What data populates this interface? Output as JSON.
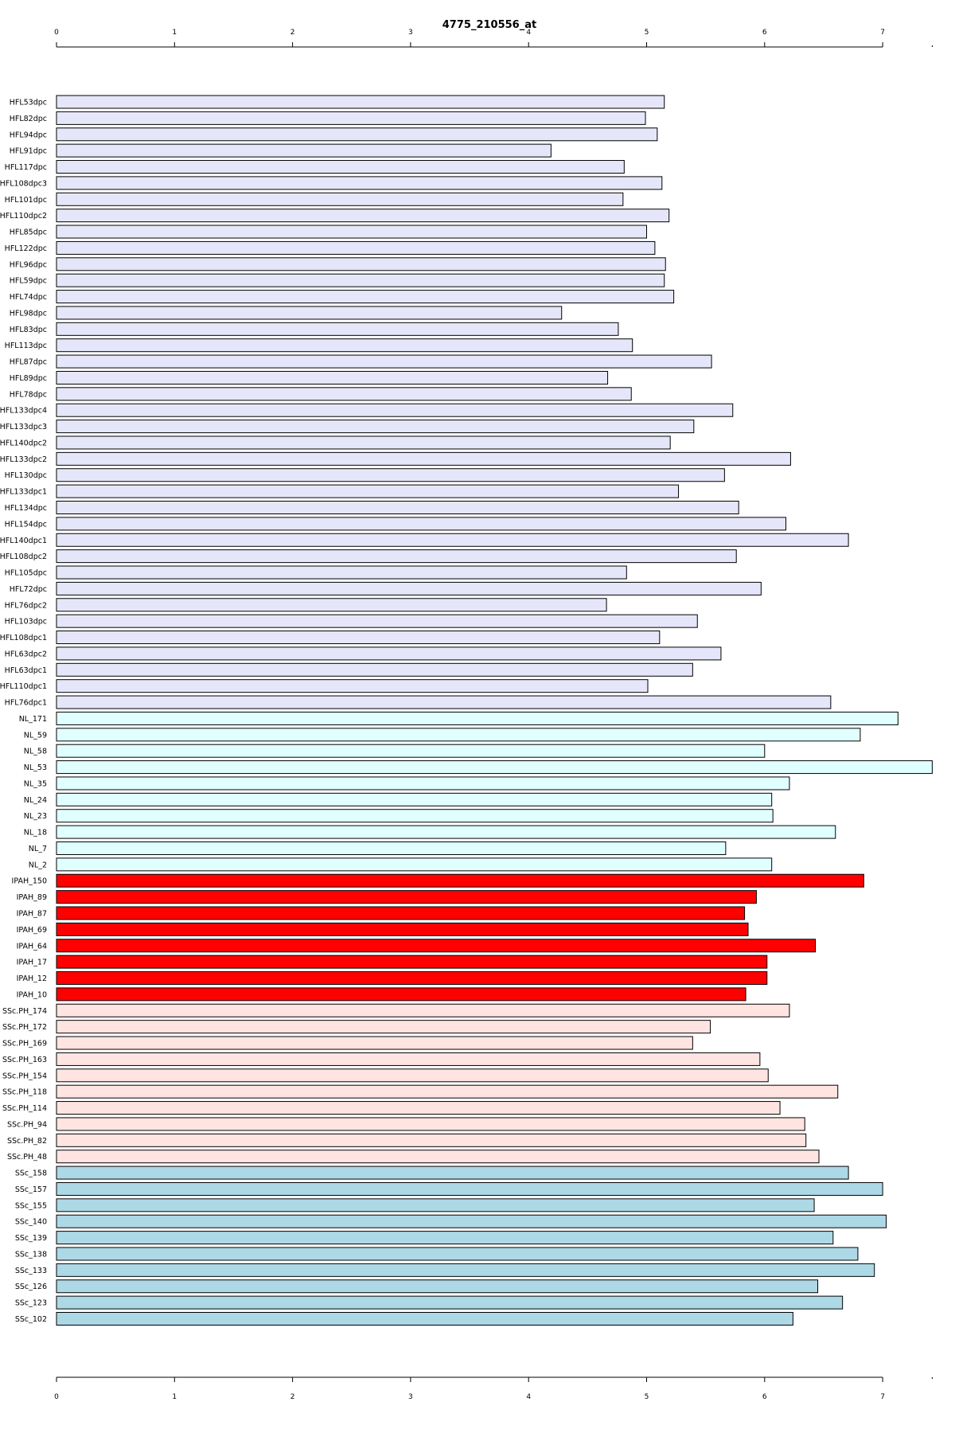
{
  "chart_data": {
    "type": "bar",
    "orientation": "horizontal",
    "title": "4775_210556_at",
    "xlabel": "",
    "ylabel": "",
    "xlim": [
      0,
      7.42
    ],
    "ticks": [
      0,
      1,
      2,
      3,
      4,
      5,
      6,
      7
    ],
    "grid": false,
    "legend": "none",
    "group_colors": {
      "HFL": "#e6e6fa",
      "NL": "#e0ffff",
      "IPAH": "#ff0000",
      "SSc.PH": "#ffe4e1",
      "SSc": "#add8e6"
    },
    "categories": [
      "HFL53dpc",
      "HFL82dpc",
      "HFL94dpc",
      "HFL91dpc",
      "HFL117dpc",
      "HFL108dpc3",
      "HFL101dpc",
      "HFL110dpc2",
      "HFL85dpc",
      "HFL122dpc",
      "HFL96dpc",
      "HFL59dpc",
      "HFL74dpc",
      "HFL98dpc",
      "HFL83dpc",
      "HFL113dpc",
      "HFL87dpc",
      "HFL89dpc",
      "HFL78dpc",
      "HFL133dpc4",
      "HFL133dpc3",
      "HFL140dpc2",
      "HFL133dpc2",
      "HFL130dpc",
      "HFL133dpc1",
      "HFL134dpc",
      "HFL154dpc",
      "HFL140dpc1",
      "HFL108dpc2",
      "HFL105dpc",
      "HFL72dpc",
      "HFL76dpc2",
      "HFL103dpc",
      "HFL108dpc1",
      "HFL63dpc2",
      "HFL63dpc1",
      "HFL110dpc1",
      "HFL76dpc1",
      "NL_171",
      "NL_59",
      "NL_58",
      "NL_53",
      "NL_35",
      "NL_24",
      "NL_23",
      "NL_18",
      "NL_7",
      "NL_2",
      "IPAH_150",
      "IPAH_89",
      "IPAH_87",
      "IPAH_69",
      "IPAH_64",
      "IPAH_17",
      "IPAH_12",
      "IPAH_10",
      "SSc.PH_174",
      "SSc.PH_172",
      "SSc.PH_169",
      "SSc.PH_163",
      "SSc.PH_154",
      "SSc.PH_118",
      "SSc.PH_114",
      "SSc.PH_94",
      "SSc.PH_82",
      "SSc.PH_48",
      "SSc_158",
      "SSc_157",
      "SSc_155",
      "SSc_140",
      "SSc_139",
      "SSc_138",
      "SSc_133",
      "SSc_126",
      "SSc_123",
      "SSc_102"
    ],
    "groups": [
      "HFL",
      "HFL",
      "HFL",
      "HFL",
      "HFL",
      "HFL",
      "HFL",
      "HFL",
      "HFL",
      "HFL",
      "HFL",
      "HFL",
      "HFL",
      "HFL",
      "HFL",
      "HFL",
      "HFL",
      "HFL",
      "HFL",
      "HFL",
      "HFL",
      "HFL",
      "HFL",
      "HFL",
      "HFL",
      "HFL",
      "HFL",
      "HFL",
      "HFL",
      "HFL",
      "HFL",
      "HFL",
      "HFL",
      "HFL",
      "HFL",
      "HFL",
      "HFL",
      "HFL",
      "NL",
      "NL",
      "NL",
      "NL",
      "NL",
      "NL",
      "NL",
      "NL",
      "NL",
      "NL",
      "IPAH",
      "IPAH",
      "IPAH",
      "IPAH",
      "IPAH",
      "IPAH",
      "IPAH",
      "IPAH",
      "SSc.PH",
      "SSc.PH",
      "SSc.PH",
      "SSc.PH",
      "SSc.PH",
      "SSc.PH",
      "SSc.PH",
      "SSc.PH",
      "SSc.PH",
      "SSc.PH",
      "SSc",
      "SSc",
      "SSc",
      "SSc",
      "SSc",
      "SSc",
      "SSc",
      "SSc",
      "SSc",
      "SSc"
    ],
    "values": [
      5.15,
      4.99,
      5.09,
      4.19,
      4.81,
      5.13,
      4.8,
      5.19,
      5.0,
      5.07,
      5.16,
      5.15,
      5.23,
      4.28,
      4.76,
      4.88,
      5.55,
      4.67,
      4.87,
      5.73,
      5.4,
      5.2,
      6.22,
      5.66,
      5.27,
      5.78,
      6.18,
      6.71,
      5.76,
      4.83,
      5.97,
      4.66,
      5.43,
      5.11,
      5.63,
      5.39,
      5.01,
      6.56,
      7.13,
      6.81,
      6.0,
      7.42,
      6.21,
      6.06,
      6.07,
      6.6,
      5.67,
      6.06,
      6.84,
      5.93,
      5.83,
      5.86,
      6.43,
      6.02,
      6.02,
      5.84,
      6.21,
      5.54,
      5.39,
      5.96,
      6.03,
      6.62,
      6.13,
      6.34,
      6.35,
      6.46,
      6.71,
      7.0,
      6.42,
      7.03,
      6.58,
      6.79,
      6.93,
      6.45,
      6.66,
      6.24
    ]
  }
}
